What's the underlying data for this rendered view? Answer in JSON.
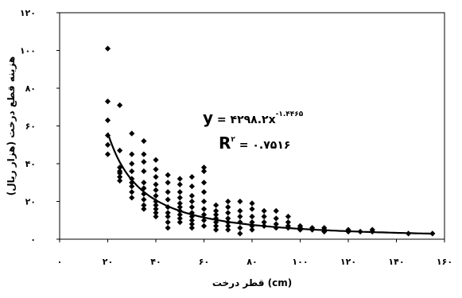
{
  "chart_data": {
    "type": "scatter",
    "title": "",
    "xlabel": "قطر درخت (cm)",
    "ylabel": "هزینه قطع درخت (هزار ریال)",
    "xlim": [
      0,
      160
    ],
    "ylim": [
      0,
      120
    ],
    "x_ticks": [
      0,
      20,
      40,
      60,
      80,
      100,
      120,
      140,
      160
    ],
    "x_tick_labels": [
      "۰",
      "۲۰",
      "۴۰",
      "۶۰",
      "۸۰",
      "۱۰۰",
      "۱۲۰",
      "۱۴۰",
      "۱۶۰"
    ],
    "y_ticks": [
      0,
      20,
      40,
      60,
      80,
      100,
      120
    ],
    "y_tick_labels": [
      "۰",
      "۲۰",
      "۴۰",
      "۶۰",
      "۸۰",
      "۱۰۰",
      "۱۲۰"
    ],
    "grid": false,
    "marker": "diamond",
    "marker_color": "#000000",
    "trendline": {
      "type": "power",
      "a": 4298.2,
      "b": -1.4465,
      "x_range": [
        20,
        155
      ],
      "equation_parts": {
        "y": "y",
        "eq": " = ۴۲۹۸.۲x",
        "exp": "-۱.۴۴۶۵"
      },
      "r2_parts": {
        "r": "R",
        "exp": "۲",
        "eq": " = ۰.۷۵۱۶"
      }
    },
    "points": [
      {
        "x": 20,
        "y": 101
      },
      {
        "x": 20,
        "y": 73
      },
      {
        "x": 20,
        "y": 63
      },
      {
        "x": 20,
        "y": 50
      },
      {
        "x": 20,
        "y": 45
      },
      {
        "x": 20,
        "y": 55
      },
      {
        "x": 25,
        "y": 71
      },
      {
        "x": 25,
        "y": 47
      },
      {
        "x": 25,
        "y": 38
      },
      {
        "x": 25,
        "y": 36
      },
      {
        "x": 25,
        "y": 33
      },
      {
        "x": 25,
        "y": 31
      },
      {
        "x": 25,
        "y": 35
      },
      {
        "x": 30,
        "y": 56
      },
      {
        "x": 30,
        "y": 45
      },
      {
        "x": 30,
        "y": 40
      },
      {
        "x": 30,
        "y": 36
      },
      {
        "x": 30,
        "y": 32
      },
      {
        "x": 30,
        "y": 30
      },
      {
        "x": 30,
        "y": 28
      },
      {
        "x": 30,
        "y": 25
      },
      {
        "x": 30,
        "y": 22
      },
      {
        "x": 35,
        "y": 52
      },
      {
        "x": 35,
        "y": 45
      },
      {
        "x": 35,
        "y": 41
      },
      {
        "x": 35,
        "y": 36
      },
      {
        "x": 35,
        "y": 30
      },
      {
        "x": 35,
        "y": 27
      },
      {
        "x": 35,
        "y": 24
      },
      {
        "x": 35,
        "y": 21
      },
      {
        "x": 35,
        "y": 18
      },
      {
        "x": 35,
        "y": 16
      },
      {
        "x": 40,
        "y": 42
      },
      {
        "x": 40,
        "y": 37
      },
      {
        "x": 40,
        "y": 33
      },
      {
        "x": 40,
        "y": 29
      },
      {
        "x": 40,
        "y": 26
      },
      {
        "x": 40,
        "y": 23
      },
      {
        "x": 40,
        "y": 20
      },
      {
        "x": 40,
        "y": 18
      },
      {
        "x": 40,
        "y": 16
      },
      {
        "x": 40,
        "y": 14
      },
      {
        "x": 40,
        "y": 12
      },
      {
        "x": 45,
        "y": 34
      },
      {
        "x": 45,
        "y": 30
      },
      {
        "x": 45,
        "y": 25
      },
      {
        "x": 45,
        "y": 21
      },
      {
        "x": 45,
        "y": 17
      },
      {
        "x": 45,
        "y": 14
      },
      {
        "x": 45,
        "y": 12
      },
      {
        "x": 45,
        "y": 9
      },
      {
        "x": 45,
        "y": 6
      },
      {
        "x": 50,
        "y": 32
      },
      {
        "x": 50,
        "y": 29
      },
      {
        "x": 50,
        "y": 25
      },
      {
        "x": 50,
        "y": 22
      },
      {
        "x": 50,
        "y": 19
      },
      {
        "x": 50,
        "y": 17
      },
      {
        "x": 50,
        "y": 15
      },
      {
        "x": 50,
        "y": 13
      },
      {
        "x": 50,
        "y": 11
      },
      {
        "x": 50,
        "y": 9
      },
      {
        "x": 55,
        "y": 33
      },
      {
        "x": 55,
        "y": 28
      },
      {
        "x": 55,
        "y": 23
      },
      {
        "x": 55,
        "y": 20
      },
      {
        "x": 55,
        "y": 17
      },
      {
        "x": 55,
        "y": 14
      },
      {
        "x": 55,
        "y": 12
      },
      {
        "x": 55,
        "y": 10
      },
      {
        "x": 55,
        "y": 8
      },
      {
        "x": 55,
        "y": 6
      },
      {
        "x": 60,
        "y": 38
      },
      {
        "x": 60,
        "y": 36
      },
      {
        "x": 60,
        "y": 30
      },
      {
        "x": 60,
        "y": 25
      },
      {
        "x": 60,
        "y": 20
      },
      {
        "x": 60,
        "y": 16
      },
      {
        "x": 60,
        "y": 13
      },
      {
        "x": 60,
        "y": 10
      },
      {
        "x": 60,
        "y": 7
      },
      {
        "x": 65,
        "y": 18
      },
      {
        "x": 65,
        "y": 15
      },
      {
        "x": 65,
        "y": 13
      },
      {
        "x": 65,
        "y": 11
      },
      {
        "x": 65,
        "y": 9
      },
      {
        "x": 65,
        "y": 7
      },
      {
        "x": 65,
        "y": 5
      },
      {
        "x": 70,
        "y": 20
      },
      {
        "x": 70,
        "y": 17
      },
      {
        "x": 70,
        "y": 14
      },
      {
        "x": 70,
        "y": 11
      },
      {
        "x": 70,
        "y": 9
      },
      {
        "x": 70,
        "y": 7
      },
      {
        "x": 70,
        "y": 5
      },
      {
        "x": 75,
        "y": 20
      },
      {
        "x": 75,
        "y": 15
      },
      {
        "x": 75,
        "y": 12
      },
      {
        "x": 75,
        "y": 9
      },
      {
        "x": 75,
        "y": 6
      },
      {
        "x": 75,
        "y": 3
      },
      {
        "x": 80,
        "y": 19
      },
      {
        "x": 80,
        "y": 16
      },
      {
        "x": 80,
        "y": 12
      },
      {
        "x": 80,
        "y": 9
      },
      {
        "x": 80,
        "y": 7
      },
      {
        "x": 80,
        "y": 5
      },
      {
        "x": 85,
        "y": 15
      },
      {
        "x": 85,
        "y": 12
      },
      {
        "x": 85,
        "y": 9
      },
      {
        "x": 85,
        "y": 7
      },
      {
        "x": 90,
        "y": 15
      },
      {
        "x": 90,
        "y": 11
      },
      {
        "x": 90,
        "y": 8
      },
      {
        "x": 90,
        "y": 6
      },
      {
        "x": 95,
        "y": 12
      },
      {
        "x": 95,
        "y": 9
      },
      {
        "x": 95,
        "y": 7
      },
      {
        "x": 95,
        "y": 6
      },
      {
        "x": 100,
        "y": 7
      },
      {
        "x": 100,
        "y": 6
      },
      {
        "x": 100,
        "y": 5
      },
      {
        "x": 105,
        "y": 6
      },
      {
        "x": 105,
        "y": 5
      },
      {
        "x": 110,
        "y": 6
      },
      {
        "x": 110,
        "y": 5
      },
      {
        "x": 110,
        "y": 4
      },
      {
        "x": 120,
        "y": 5
      },
      {
        "x": 120,
        "y": 4
      },
      {
        "x": 125,
        "y": 4
      },
      {
        "x": 130,
        "y": 5
      },
      {
        "x": 130,
        "y": 4
      },
      {
        "x": 145,
        "y": 3
      },
      {
        "x": 155,
        "y": 3
      }
    ]
  }
}
